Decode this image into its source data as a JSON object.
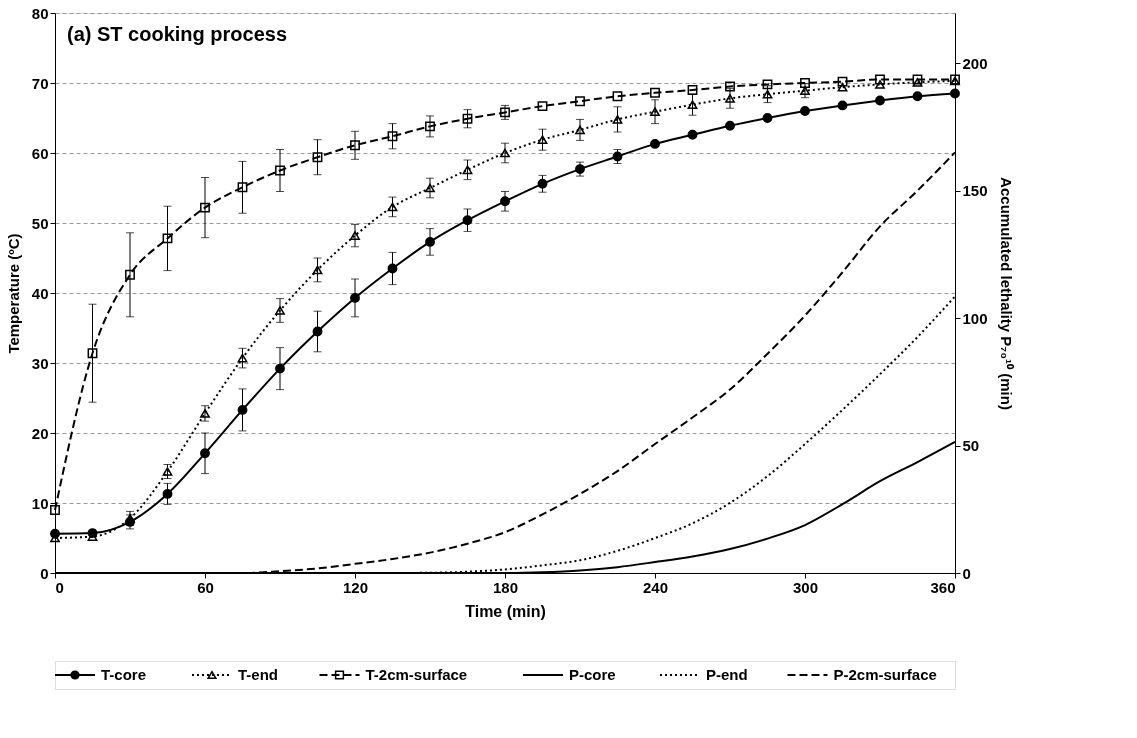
{
  "chart_data": {
    "type": "line",
    "xlabel": "Time (min)",
    "ylabel": "Temperature (ºC)",
    "y2label": "Accumulated lethality P₇₀¹⁰  (min)",
    "annotations": [
      "(a)  ST cooking process"
    ],
    "x": [
      0,
      15,
      30,
      45,
      60,
      75,
      90,
      105,
      120,
      135,
      150,
      165,
      180,
      195,
      210,
      225,
      240,
      255,
      270,
      285,
      300,
      315,
      330,
      345,
      360
    ],
    "xlim": [
      0,
      360
    ],
    "xticks": [
      0,
      60,
      120,
      180,
      240,
      300,
      360
    ],
    "ylim": [
      0,
      80
    ],
    "yticks": [
      0,
      10,
      20,
      30,
      40,
      50,
      60,
      70,
      80
    ],
    "y2lim": [
      0,
      219.7
    ],
    "y2ticks": [
      0,
      50,
      100,
      150,
      200
    ],
    "grid": "y",
    "legend": "bottom",
    "series": [
      {
        "name": "T-core",
        "color": "#000000",
        "marker": "circle",
        "line_style": "solid",
        "values": [
          5.6,
          5.7,
          7.3,
          11.3,
          17.1,
          23.3,
          29.2,
          34.5,
          39.3,
          43.5,
          47.3,
          50.4,
          53.1,
          55.6,
          57.7,
          59.5,
          61.3,
          62.6,
          63.9,
          65.0,
          66.0,
          66.8,
          67.5,
          68.1,
          68.5
        ],
        "errors": [
          null,
          null,
          1.0,
          1.5,
          2.9,
          3.0,
          3.0,
          2.9,
          2.7,
          2.3,
          1.9,
          1.6,
          1.4,
          1.2,
          1.0,
          1.0,
          null,
          null,
          null,
          null,
          null,
          null,
          null,
          null,
          null
        ]
      },
      {
        "name": "T-end",
        "color": "#000000",
        "marker": "triangle",
        "line_style": "dotted",
        "values": [
          5.0,
          5.2,
          7.8,
          14.5,
          22.8,
          30.7,
          37.5,
          43.3,
          48.2,
          52.3,
          55.0,
          57.6,
          60.0,
          61.9,
          63.3,
          64.8,
          65.9,
          66.9,
          67.8,
          68.4,
          68.9,
          69.4,
          69.8,
          70.1,
          70.3
        ],
        "errors": [
          null,
          null,
          1.0,
          1.0,
          1.1,
          1.4,
          1.7,
          1.7,
          1.6,
          1.4,
          1.4,
          1.4,
          1.4,
          1.5,
          1.5,
          1.8,
          1.7,
          1.5,
          1.4,
          1.2,
          1.0,
          null,
          null,
          null,
          null
        ]
      },
      {
        "name": "T-2cm-surface",
        "color": "#000000",
        "marker": "square",
        "line_style": "dashed",
        "values": [
          9.0,
          31.4,
          42.6,
          47.8,
          52.2,
          55.1,
          57.5,
          59.4,
          61.1,
          62.4,
          63.8,
          64.9,
          65.8,
          66.7,
          67.4,
          68.1,
          68.6,
          69.0,
          69.5,
          69.8,
          70.0,
          70.2,
          70.5,
          70.5,
          70.5
        ],
        "errors": [
          null,
          7.0,
          6.0,
          4.6,
          4.3,
          3.7,
          3.0,
          2.5,
          2.0,
          1.8,
          1.5,
          1.3,
          1.0,
          null,
          null,
          null,
          null,
          null,
          null,
          null,
          null,
          null,
          null,
          null,
          null
        ]
      },
      {
        "name": "P-core",
        "color": "#000000",
        "marker": "none",
        "line_style": "solid",
        "axis": "y2",
        "values": [
          0,
          0,
          0,
          0,
          0,
          0,
          0,
          0,
          0,
          0,
          0,
          0,
          0,
          0.3,
          1.0,
          2.3,
          4.3,
          6.5,
          9.4,
          13.5,
          18.8,
          27.0,
          36.0,
          43.5,
          51.4
        ]
      },
      {
        "name": "P-end",
        "color": "#000000",
        "marker": "none",
        "line_style": "dotted",
        "axis": "y2",
        "values": [
          0,
          0,
          0,
          0,
          0,
          0,
          0,
          0,
          0,
          0,
          0.1,
          0.5,
          1.4,
          3.0,
          5.0,
          8.7,
          13.7,
          19.5,
          27.5,
          38.0,
          50.6,
          64.0,
          78.0,
          92.6,
          108.5
        ]
      },
      {
        "name": "P-2cm-surface",
        "color": "#000000",
        "marker": "none",
        "line_style": "dashed",
        "axis": "y2",
        "values": [
          0,
          0,
          0,
          0,
          0,
          0,
          0.7,
          1.8,
          3.6,
          5.5,
          8.0,
          11.5,
          16.0,
          23.0,
          31.0,
          40.0,
          50.6,
          61.0,
          72.0,
          86.0,
          101.0,
          118.0,
          136.0,
          150.0,
          165.0
        ]
      }
    ]
  }
}
